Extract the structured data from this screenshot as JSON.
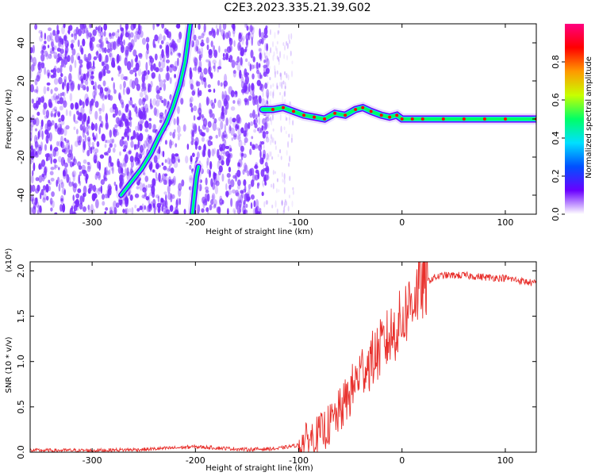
{
  "title": "C2E3.2023.335.21.39.G02",
  "colors": {
    "snr_line": "#e8302c",
    "spectrogram_speckle": "#7a2bff",
    "colormap": [
      "#ffffff",
      "#6a00ff",
      "#0050ff",
      "#00e0ff",
      "#00ff66",
      "#c8ff00",
      "#ff9900",
      "#ff0000",
      "#ff0080"
    ]
  },
  "chart_data": [
    {
      "type": "heatmap",
      "xlabel": "Height of straight line (km)",
      "ylabel": "Frequency (Hz)",
      "xlim": [
        -360,
        130
      ],
      "ylim": [
        -50,
        50
      ],
      "x_ticks": [
        -300,
        -200,
        -100,
        0,
        100
      ],
      "x_tick_labels": [
        "-300",
        "-200",
        "-100",
        "0",
        "100"
      ],
      "y_ticks": [
        -40,
        -20,
        0,
        20,
        40
      ],
      "y_tick_labels": [
        "-40",
        "-20",
        "0",
        "20",
        "40"
      ],
      "colorbar": {
        "label": "Normalized spectral amplitude",
        "range": [
          0.0,
          1.0
        ],
        "ticks": [
          0.0,
          0.2,
          0.4,
          0.6,
          0.8
        ],
        "tick_labels": [
          "0.0",
          "0.2",
          "0.4",
          "0.6",
          "0.8"
        ]
      },
      "features": {
        "signal_trace": {
          "x": [
            -135,
            -125,
            -115,
            -105,
            -95,
            -85,
            -75,
            -65,
            -55,
            -45,
            -38,
            -30,
            -20,
            -12,
            -5,
            0,
            10,
            20,
            40,
            60,
            80,
            100,
            130
          ],
          "y": [
            5,
            5,
            6,
            4,
            2,
            1,
            0,
            3,
            2,
            5,
            6,
            4,
            2,
            1,
            2,
            0,
            0,
            0,
            0,
            0,
            0,
            0,
            0
          ]
        },
        "steep_trace_left": {
          "x": [
            -272,
            -262,
            -252,
            -243,
            -236,
            -228,
            -222,
            -215,
            -210,
            -205
          ],
          "y": [
            -40,
            -33,
            -26,
            -18,
            -10,
            -2,
            6,
            18,
            30,
            50
          ]
        },
        "steep_trace_right": {
          "x": [
            -203,
            -201,
            -199,
            -197
          ],
          "y": [
            -50,
            -40,
            -30,
            -25
          ]
        }
      }
    },
    {
      "type": "line",
      "xlabel": "Height of straight line (km)",
      "ylabel": "SNR (10 * v/v)",
      "y_multiplier_label": "(x10⁴)",
      "xlim": [
        -360,
        130
      ],
      "ylim": [
        0,
        2.1
      ],
      "x_ticks": [
        -300,
        -200,
        -100,
        0,
        100
      ],
      "x_tick_labels": [
        "-300",
        "-200",
        "-100",
        "0",
        "100"
      ],
      "y_ticks": [
        0.0,
        0.5,
        1.0,
        1.5,
        2.0
      ],
      "y_tick_labels": [
        "0.0",
        "0.5",
        "1.0",
        "1.5",
        "2.0"
      ],
      "series": [
        {
          "x": [
            -360,
            -300,
            -250,
            -200,
            -150,
            -120,
            -100,
            -90,
            -80,
            -70,
            -60,
            -50,
            -40,
            -30,
            -20,
            -10,
            0,
            10,
            20,
            30,
            40,
            60,
            80,
            100,
            120,
            130
          ],
          "y": [
            0.02,
            0.02,
            0.03,
            0.06,
            0.03,
            0.04,
            0.08,
            0.15,
            0.2,
            0.3,
            0.45,
            0.65,
            0.9,
            1.0,
            1.15,
            1.3,
            1.45,
            1.7,
            1.85,
            1.92,
            1.95,
            1.95,
            1.93,
            1.92,
            1.88,
            1.86
          ]
        }
      ]
    }
  ]
}
